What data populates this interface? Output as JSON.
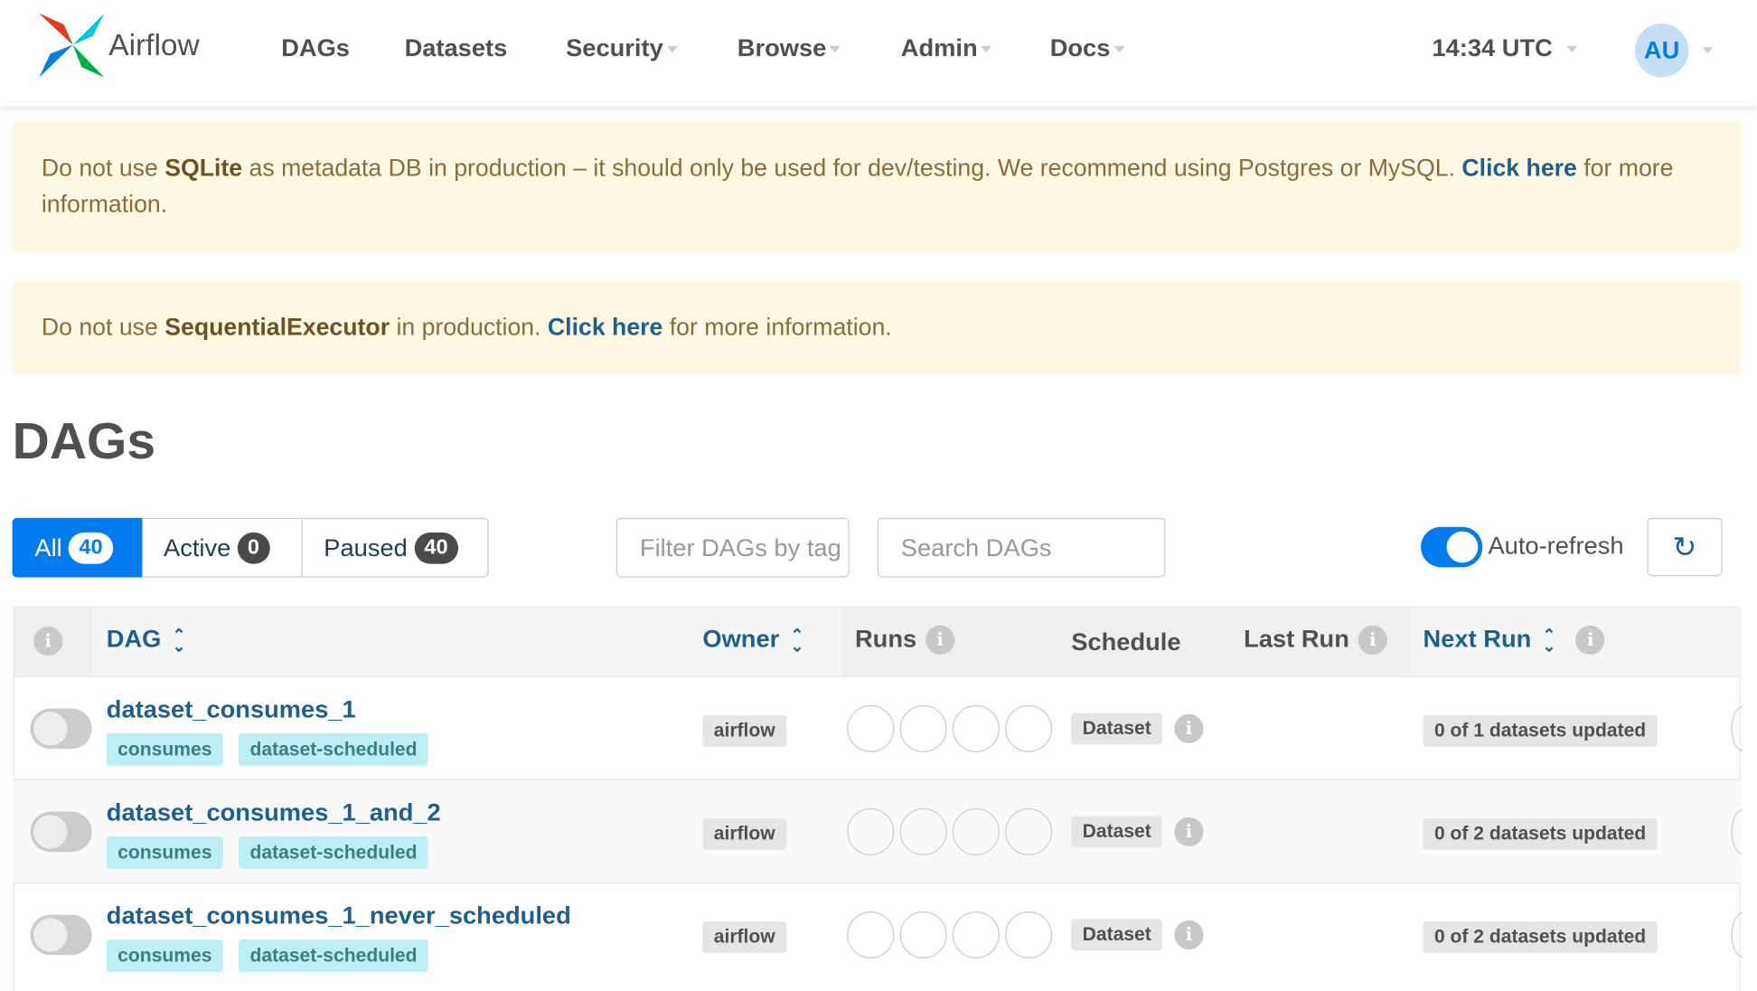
{
  "header": {
    "brand": "Airflow",
    "nav": [
      "DAGs",
      "Datasets",
      "Security",
      "Browse",
      "Admin",
      "Docs"
    ],
    "time": "14:34 UTC",
    "avatar": "AU"
  },
  "alerts": [
    {
      "pre": "Do not use ",
      "bold": "SQLite",
      "mid": " as metadata DB in production – it should only be used for dev/testing. We recommend using Postgres or MySQL. ",
      "link": "Click here",
      "post": " for more information."
    },
    {
      "pre": "Do not use ",
      "bold": "SequentialExecutor",
      "mid": " in production. ",
      "link": "Click here",
      "post": " for more information."
    }
  ],
  "page_title": "DAGs",
  "filters": {
    "all": {
      "label": "All",
      "count": "40"
    },
    "active": {
      "label": "Active",
      "count": "0"
    },
    "paused": {
      "label": "Paused",
      "count": "40"
    },
    "tags_placeholder": "Filter DAGs by tag",
    "search_placeholder": "Search DAGs",
    "auto_refresh": "Auto-refresh",
    "auto_refresh_on": true
  },
  "table": {
    "columns": [
      "DAG",
      "Owner",
      "Runs",
      "Schedule",
      "Last Run",
      "Next Run"
    ],
    "rows": [
      {
        "name": "dataset_consumes_1",
        "tags": [
          "consumes",
          "dataset-scheduled"
        ],
        "owner": "airflow",
        "schedule": "Dataset",
        "next_run": "0 of 1 datasets updated"
      },
      {
        "name": "dataset_consumes_1_and_2",
        "tags": [
          "consumes",
          "dataset-scheduled"
        ],
        "owner": "airflow",
        "schedule": "Dataset",
        "next_run": "0 of 2 datasets updated"
      },
      {
        "name": "dataset_consumes_1_never_scheduled",
        "tags": [
          "consumes",
          "dataset-scheduled"
        ],
        "owner": "airflow",
        "schedule": "Dataset",
        "next_run": "0 of 2 datasets updated"
      }
    ]
  },
  "colors": {
    "primary": "#017cee",
    "link": "#1f5f8b",
    "alert_bg": "#fcf8e3",
    "tag_bg": "#bdeef3"
  }
}
